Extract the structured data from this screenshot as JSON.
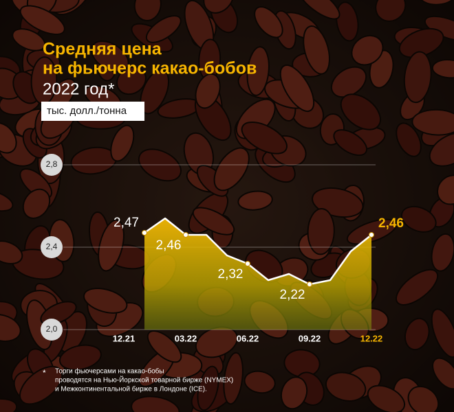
{
  "chart_data": {
    "type": "line",
    "title": "Средняя цена",
    "title_line2": "на фьючерс какао-бобов",
    "subtitle": "2022 год*",
    "unit": "тыс. долл./тонна",
    "categories": [
      "12.21",
      null,
      null,
      "03.22",
      null,
      null,
      "06.22",
      null,
      null,
      "09.22",
      null,
      null,
      "12.22"
    ],
    "values": [
      null,
      2.47,
      2.54,
      2.46,
      2.46,
      2.36,
      2.32,
      2.24,
      2.27,
      2.22,
      2.24,
      2.38,
      2.46
    ],
    "value_labels": [
      null,
      "2,47",
      null,
      "2,46",
      null,
      null,
      "2,32",
      null,
      null,
      "2,22",
      null,
      null,
      "2,46"
    ],
    "color": "#ffffff",
    "fill_color": "#f2b705",
    "highlight_color": "#f7b500",
    "ylim": [
      2.0,
      2.8
    ],
    "yticks": [
      {
        "value": 2.0,
        "label": "2,0"
      },
      {
        "value": 2.4,
        "label": "2,4"
      },
      {
        "value": 2.8,
        "label": "2,8"
      }
    ],
    "grid": true,
    "footnote_marker": "*",
    "footnote": [
      "Торги фьючерсами на какао-бобы",
      "проводятся на Нью-Йоркской товарной бирже (NYMEX)",
      "и Межконтинентальной бирже в Лондоне (ICE)."
    ]
  }
}
